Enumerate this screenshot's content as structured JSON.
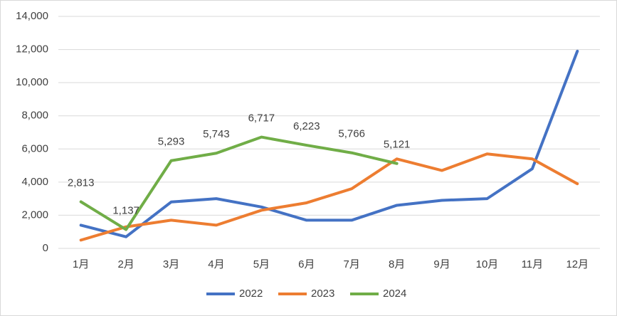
{
  "chart_data": {
    "type": "line",
    "categories": [
      "1月",
      "2月",
      "3月",
      "4月",
      "5月",
      "6月",
      "7月",
      "8月",
      "9月",
      "10月",
      "11月",
      "12月"
    ],
    "series": [
      {
        "name": "2022",
        "color": "#4472c4",
        "values": [
          1400,
          700,
          2800,
          3000,
          2500,
          1700,
          1700,
          2600,
          2900,
          3000,
          4800,
          11900
        ]
      },
      {
        "name": "2023",
        "color": "#ed7d31",
        "values": [
          500,
          1300,
          1700,
          1400,
          2300,
          2750,
          3600,
          5400,
          4700,
          5700,
          5400,
          3900
        ]
      },
      {
        "name": "2024",
        "color": "#70ad47",
        "values": [
          2813,
          1137,
          5293,
          5743,
          6717,
          6223,
          5766,
          5121,
          null,
          null,
          null,
          null
        ],
        "value_labels": [
          "2,813",
          "1,137",
          "5,293",
          "5,743",
          "6,717",
          "6,223",
          "5,766",
          "5,121",
          null,
          null,
          null,
          null
        ]
      }
    ],
    "ylim": [
      0,
      14000
    ],
    "yticks": [
      0,
      {
        "value": 2000,
        "label": "2,000"
      },
      {
        "value": 4000,
        "label": "4,000"
      },
      {
        "value": 6000,
        "label": "6,000"
      },
      {
        "value": 8000,
        "label": "8,000"
      },
      {
        "value": 10000,
        "label": "10,000"
      },
      {
        "value": 12000,
        "label": "12,000"
      },
      {
        "value": 14000,
        "label": "14,000"
      }
    ],
    "grid": true,
    "legend": "bottom"
  }
}
